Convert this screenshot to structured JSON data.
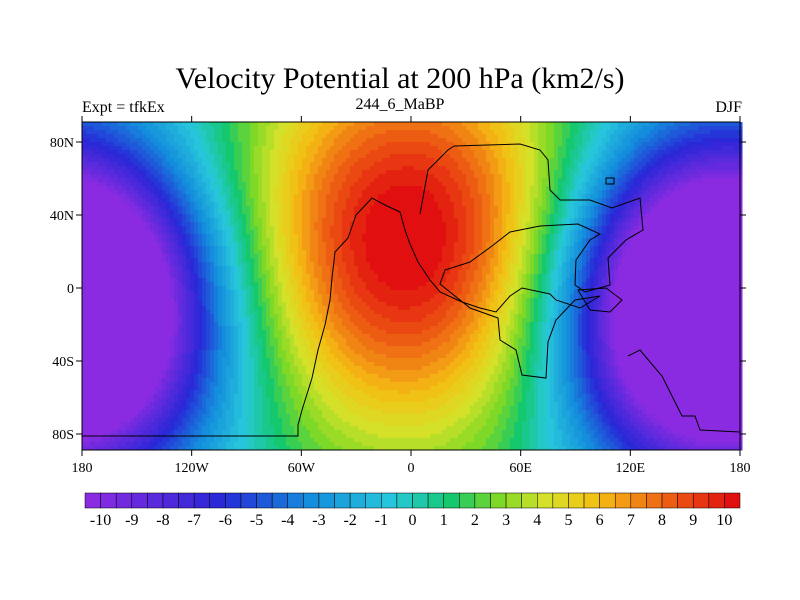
{
  "title": "Velocity Potential at 200 hPa (km2/s)",
  "left_string": "Expt = tfkEx",
  "center_string": "244_6_MaBP",
  "right_string": "DJF",
  "map": {
    "lon_ticks": [
      "180",
      "120W",
      "60W",
      "0",
      "60E",
      "120E",
      "180"
    ],
    "lat_ticks": [
      "80N",
      "40N",
      "0",
      "40S",
      "80S"
    ],
    "lon_range": [
      -180,
      180
    ],
    "lat_range": [
      -90,
      90
    ]
  },
  "colorbar": {
    "labels": [
      "-10",
      "-9",
      "-8",
      "-7",
      "-6",
      "-5",
      "-4",
      "-3",
      "-2",
      "-1",
      "0",
      "1",
      "2",
      "3",
      "4",
      "5",
      "6",
      "7",
      "8",
      "9",
      "10"
    ],
    "min": -10.5,
    "max": 10.5,
    "step": 0.5
  },
  "field": {
    "units": "km2/s",
    "centers": [
      {
        "type": "max",
        "lon": 0,
        "lat": 25,
        "value": 11
      },
      {
        "type": "min",
        "lon": 150,
        "lat": -10,
        "value": -11
      },
      {
        "type": "min",
        "lon": -175,
        "lat": -15,
        "value": -11
      }
    ]
  }
}
